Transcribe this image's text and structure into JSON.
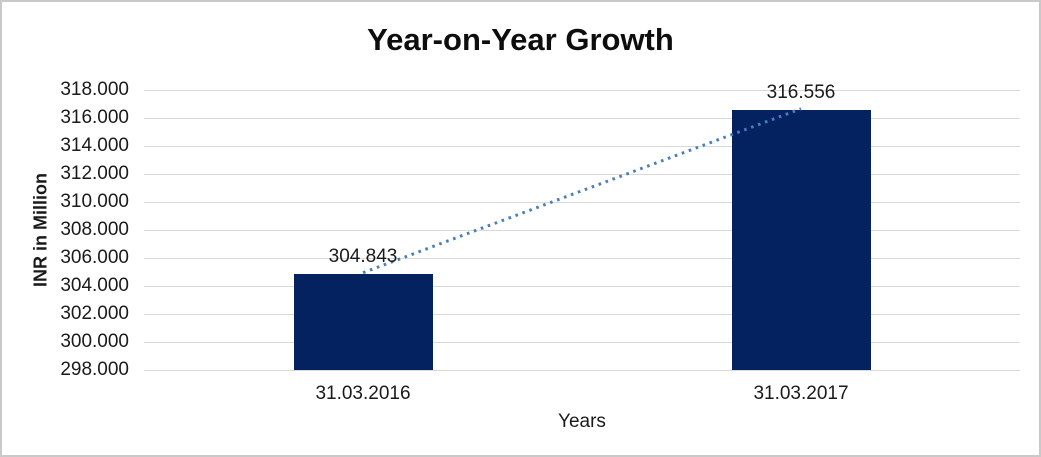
{
  "chart_data": {
    "type": "bar",
    "title": "Year-on-Year Growth",
    "xlabel": "Years",
    "ylabel": "INR in Million",
    "categories": [
      "31.03.2016",
      "31.03.2017"
    ],
    "values": [
      304.843,
      316.556
    ],
    "value_labels": [
      "304.843",
      "316.556"
    ],
    "ylim": [
      298,
      318
    ],
    "ytick_step": 2,
    "yticks": [
      "318.000",
      "316.000",
      "314.000",
      "312.000",
      "310.000",
      "308.000",
      "306.000",
      "304.000",
      "302.000",
      "300.000",
      "298.000"
    ],
    "grid": true,
    "legend": "none",
    "trendline": {
      "style": "dotted",
      "from_value": 304.843,
      "to_value": 316.556
    },
    "colors": {
      "bar": "#03225f",
      "trendline": "#4a7ebb",
      "gridline": "#d9d9d9",
      "axis_line": "#d9d9d9",
      "text": "#1a1a1a",
      "background": "#ffffff",
      "border": "#c9c9c9"
    }
  }
}
